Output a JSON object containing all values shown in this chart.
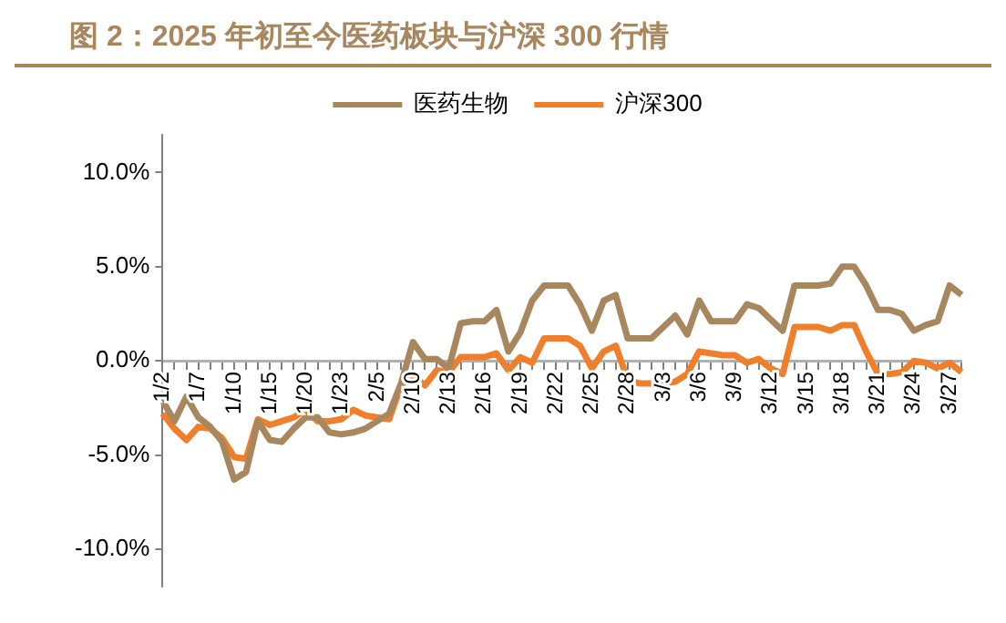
{
  "chart_data": {
    "type": "line",
    "title": "图 2：2025 年初至今医药板块与沪深 300 行情",
    "categories": [
      "1/2",
      null,
      null,
      "1/7",
      null,
      null,
      "1/10",
      null,
      null,
      "1/15",
      null,
      null,
      "1/20",
      null,
      null,
      "1/23",
      null,
      null,
      "2/5",
      null,
      null,
      "2/10",
      null,
      null,
      "2/13",
      null,
      null,
      "2/16",
      null,
      null,
      "2/19",
      null,
      null,
      "2/22",
      null,
      null,
      "2/25",
      null,
      null,
      "2/28",
      null,
      null,
      "3/3",
      null,
      null,
      "3/6",
      null,
      null,
      "3/9",
      null,
      null,
      "3/12",
      null,
      null,
      "3/15",
      null,
      null,
      "3/18",
      null,
      null,
      "3/21",
      null,
      null,
      "3/24",
      null,
      null,
      "3/27",
      null
    ],
    "series": [
      {
        "name": "医药生物",
        "color": "#a8865e",
        "values": [
          -2.1,
          -3.2,
          -1.9,
          -3.0,
          -3.5,
          -4.3,
          -6.3,
          -5.9,
          -3.2,
          -4.2,
          -4.3,
          -3.6,
          -3.0,
          -3.0,
          -3.8,
          -3.9,
          -3.8,
          -3.6,
          -3.2,
          -2.8,
          -1.2,
          1.0,
          0.1,
          0.1,
          -0.4,
          2.0,
          2.1,
          2.1,
          2.7,
          0.5,
          1.5,
          3.2,
          4.0,
          4.0,
          4.0,
          3.0,
          1.6,
          3.2,
          3.5,
          1.2,
          1.2,
          1.2,
          1.8,
          2.4,
          1.4,
          3.2,
          2.1,
          2.1,
          2.1,
          3.0,
          2.8,
          2.2,
          1.6,
          4.0,
          4.0,
          4.0,
          4.1,
          5.0,
          5.0,
          4.0,
          2.7,
          2.7,
          2.5,
          1.6,
          1.9,
          2.1,
          4.0,
          3.5
        ]
      },
      {
        "name": "沪深300",
        "color": "#f07f2c",
        "values": [
          -2.8,
          -3.6,
          -4.2,
          -3.5,
          -3.6,
          -4.1,
          -5.1,
          -5.2,
          -3.1,
          -3.4,
          -3.2,
          -3.0,
          -2.6,
          -3.2,
          -3.2,
          -3.1,
          -2.6,
          -2.9,
          -3.0,
          -3.1,
          -1.3,
          -0.8,
          -1.3,
          -0.5,
          -0.6,
          0.2,
          0.2,
          0.2,
          0.4,
          -0.5,
          0.2,
          -0.1,
          1.2,
          1.2,
          1.2,
          0.8,
          -0.4,
          0.5,
          0.8,
          -1.0,
          -1.2,
          -1.2,
          -1.2,
          -1.1,
          -0.7,
          0.5,
          0.4,
          0.3,
          0.3,
          -0.1,
          0.1,
          -0.4,
          -0.7,
          1.8,
          1.8,
          1.8,
          1.6,
          1.9,
          1.9,
          0.5,
          -0.7,
          -0.7,
          -0.6,
          0.0,
          -0.1,
          -0.4,
          -0.1,
          -0.6
        ]
      }
    ],
    "ylim": [
      -12,
      12
    ],
    "yticks": [
      {
        "value": 10,
        "label": "10.0%"
      },
      {
        "value": 5,
        "label": "5.0%"
      },
      {
        "value": 0,
        "label": "0.0%"
      },
      {
        "value": -5,
        "label": "-5.0%"
      },
      {
        "value": -10,
        "label": "-10.0%"
      }
    ],
    "grid": false,
    "legend": "top",
    "marker": "none",
    "line_style": "solid"
  }
}
